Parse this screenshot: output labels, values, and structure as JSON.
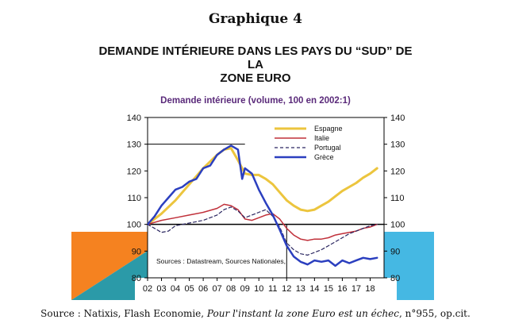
{
  "heading": "Graphique 4",
  "source": {
    "prefix": "Source : Natixis, Flash Economie, ",
    "italic": "Pour l'instant la zone Euro est un échec",
    "suffix": ", n°955, op.cit."
  },
  "colors": {
    "background": "#ffffff",
    "deco_orange": "#f58220",
    "deco_blue": "#45b8e3",
    "deco_teal": "#2b9aa8"
  },
  "chart_data": {
    "type": "line",
    "title_lines": [
      "DEMANDE INTÉRIEURE DANS LES PAYS DU “SUD” DE",
      "LA",
      "ZONE EURO"
    ],
    "subtitle": "Demande intérieure (volume, 100 en 2002:1)",
    "note": "Sources : Datastream, Sources Nationales,",
    "x_tick_labels": [
      "02",
      "03",
      "04",
      "05",
      "06",
      "07",
      "08",
      "09",
      "10",
      "11",
      "12",
      "13",
      "14",
      "15",
      "16",
      "17",
      "18"
    ],
    "xlim": [
      2002,
      2019
    ],
    "ylim": [
      80,
      140
    ],
    "y_ticks": [
      80,
      90,
      100,
      110,
      120,
      130,
      140
    ],
    "reference_line": 100,
    "grid": false,
    "legend_position": "top-right",
    "series": [
      {
        "name": "Espagne",
        "color": "#ecc53e",
        "width": 3,
        "dash": "",
        "x": [
          2002,
          2003,
          2004,
          2005,
          2006,
          2007,
          2007.5,
          2008,
          2008.5,
          2009,
          2009.5,
          2010,
          2010.5,
          2011,
          2011.5,
          2012,
          2012.5,
          2013,
          2013.5,
          2014,
          2014.5,
          2015,
          2015.5,
          2016,
          2016.5,
          2017,
          2017.5,
          2018,
          2018.5
        ],
        "y": [
          100,
          104,
          109,
          115,
          121,
          126,
          128,
          128.5,
          124,
          119,
          118.5,
          118.5,
          117,
          115,
          112,
          109,
          107,
          105.5,
          105,
          105.5,
          107,
          108.5,
          110.5,
          112.5,
          114,
          115.5,
          117.5,
          119,
          121
        ]
      },
      {
        "name": "Italie",
        "color": "#c0303a",
        "width": 1.5,
        "dash": "",
        "x": [
          2002,
          2003,
          2004,
          2005,
          2006,
          2007,
          2007.5,
          2008,
          2008.5,
          2009,
          2009.5,
          2010,
          2010.5,
          2011,
          2011.5,
          2012,
          2012.5,
          2013,
          2013.5,
          2014,
          2014.5,
          2015,
          2015.5,
          2016,
          2016.5,
          2017,
          2017.5,
          2018,
          2018.5
        ],
        "y": [
          100,
          101.5,
          102.5,
          103.5,
          104.5,
          106,
          107.5,
          107,
          105.5,
          102,
          101.5,
          102.5,
          103.5,
          104,
          102,
          98.5,
          96,
          94.5,
          94,
          94.5,
          94.5,
          95,
          96,
          96.5,
          97,
          97.5,
          98.5,
          99,
          100
        ]
      },
      {
        "name": "Portugal",
        "color": "#2a2660",
        "width": 1.2,
        "dash": "4 3",
        "x": [
          2002,
          2002.5,
          2003,
          2003.5,
          2004,
          2005,
          2006,
          2007,
          2007.5,
          2008,
          2008.5,
          2009,
          2009.5,
          2010,
          2010.5,
          2011,
          2011.5,
          2012,
          2012.5,
          2013,
          2013.5,
          2014,
          2014.5,
          2015,
          2015.5,
          2016,
          2016.5,
          2017,
          2017.5,
          2018,
          2018.5
        ],
        "y": [
          100,
          98.5,
          97,
          97.5,
          99.5,
          100.5,
          101.5,
          103.5,
          105.5,
          106.5,
          105,
          102.5,
          103.5,
          104.5,
          105.5,
          103,
          99,
          93,
          90.5,
          89,
          88.5,
          89.5,
          90.5,
          92,
          93.5,
          95,
          96.5,
          97.5,
          98.5,
          99.5,
          100
        ]
      },
      {
        "name": "Grèce",
        "color": "#2b3fbf",
        "width": 2.5,
        "dash": "",
        "x": [
          2002,
          2002.5,
          2003,
          2003.5,
          2004,
          2004.5,
          2005,
          2005.5,
          2006,
          2006.5,
          2007,
          2007.5,
          2008,
          2008.5,
          2008.8,
          2009,
          2009.5,
          2010,
          2010.5,
          2011,
          2011.5,
          2012,
          2012.5,
          2013,
          2013.5,
          2014,
          2014.5,
          2015,
          2015.5,
          2016,
          2016.5,
          2017,
          2017.5,
          2018,
          2018.5
        ],
        "y": [
          100,
          103,
          107,
          110,
          113,
          114,
          116,
          117,
          121,
          122,
          126,
          128,
          129.5,
          128,
          117,
          121,
          119,
          113,
          108,
          103.5,
          98,
          92,
          88,
          86,
          85,
          86.5,
          86,
          86.5,
          84.5,
          86.5,
          85.5,
          86.5,
          87.5,
          87,
          87.5
        ]
      }
    ]
  }
}
